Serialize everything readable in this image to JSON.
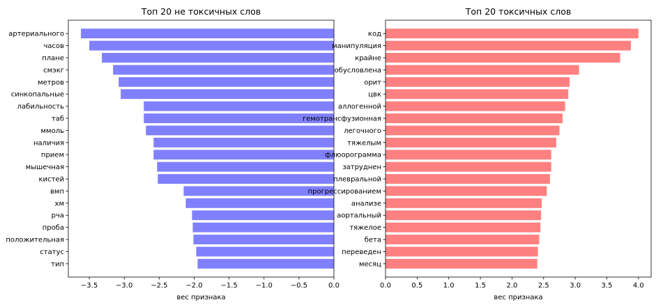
{
  "chart_data": [
    {
      "type": "bar",
      "orientation": "horizontal",
      "title": "Топ 20 не токсичных слов",
      "xlabel": "вес признака",
      "ylabel": "",
      "xlim": [
        -3.8,
        0.0
      ],
      "xticks": [
        -3.5,
        -3.0,
        -2.5,
        -2.0,
        -1.5,
        -1.0,
        -0.5,
        0.0
      ],
      "xtick_labels": [
        "−3.5",
        "−3.0",
        "−2.5",
        "−2.0",
        "−1.5",
        "−1.0",
        "−0.5",
        "0.0"
      ],
      "color": "#8080ff",
      "grid": false,
      "categories": [
        "артериального",
        "часов",
        "плане",
        "смэкг",
        "метров",
        "синкопальные",
        "лабильность",
        "таб",
        "ммоль",
        "наличия",
        "прием",
        "мышечная",
        "кистей",
        "вмп",
        "хм",
        "рча",
        "проба",
        "положительная",
        "статус",
        "тип"
      ],
      "values": [
        -3.62,
        -3.5,
        -3.32,
        -3.16,
        -3.08,
        -3.05,
        -2.72,
        -2.72,
        -2.69,
        -2.58,
        -2.58,
        -2.53,
        -2.52,
        -2.15,
        -2.12,
        -2.03,
        -2.02,
        -2.01,
        -1.97,
        -1.95
      ]
    },
    {
      "type": "bar",
      "orientation": "horizontal",
      "title": "Топ 20 токсичных слов",
      "xlabel": "вес признака",
      "ylabel": "",
      "xlim": [
        0.0,
        4.2
      ],
      "xticks": [
        0.0,
        0.5,
        1.0,
        1.5,
        2.0,
        2.5,
        3.0,
        3.5,
        4.0
      ],
      "xtick_labels": [
        "0.0",
        "0.5",
        "1.0",
        "1.5",
        "2.0",
        "2.5",
        "3.0",
        "3.5",
        "4.0"
      ],
      "color": "#ff8080",
      "grid": false,
      "categories": [
        "код",
        "манипуляция",
        "крайне",
        "обусловлена",
        "орит",
        "цвк",
        "аллогенной",
        "гемотрансфузионная",
        "легочного",
        "тяжелым",
        "флюорограмма",
        "затруднен",
        "плевральной",
        "прогрессированием",
        "анализе",
        "аортальный",
        "тяжелое",
        "бета",
        "переведен",
        "месяц"
      ],
      "values": [
        4.0,
        3.88,
        3.71,
        3.06,
        2.91,
        2.89,
        2.84,
        2.8,
        2.75,
        2.7,
        2.62,
        2.62,
        2.6,
        2.55,
        2.47,
        2.46,
        2.45,
        2.43,
        2.41,
        2.4
      ]
    }
  ]
}
